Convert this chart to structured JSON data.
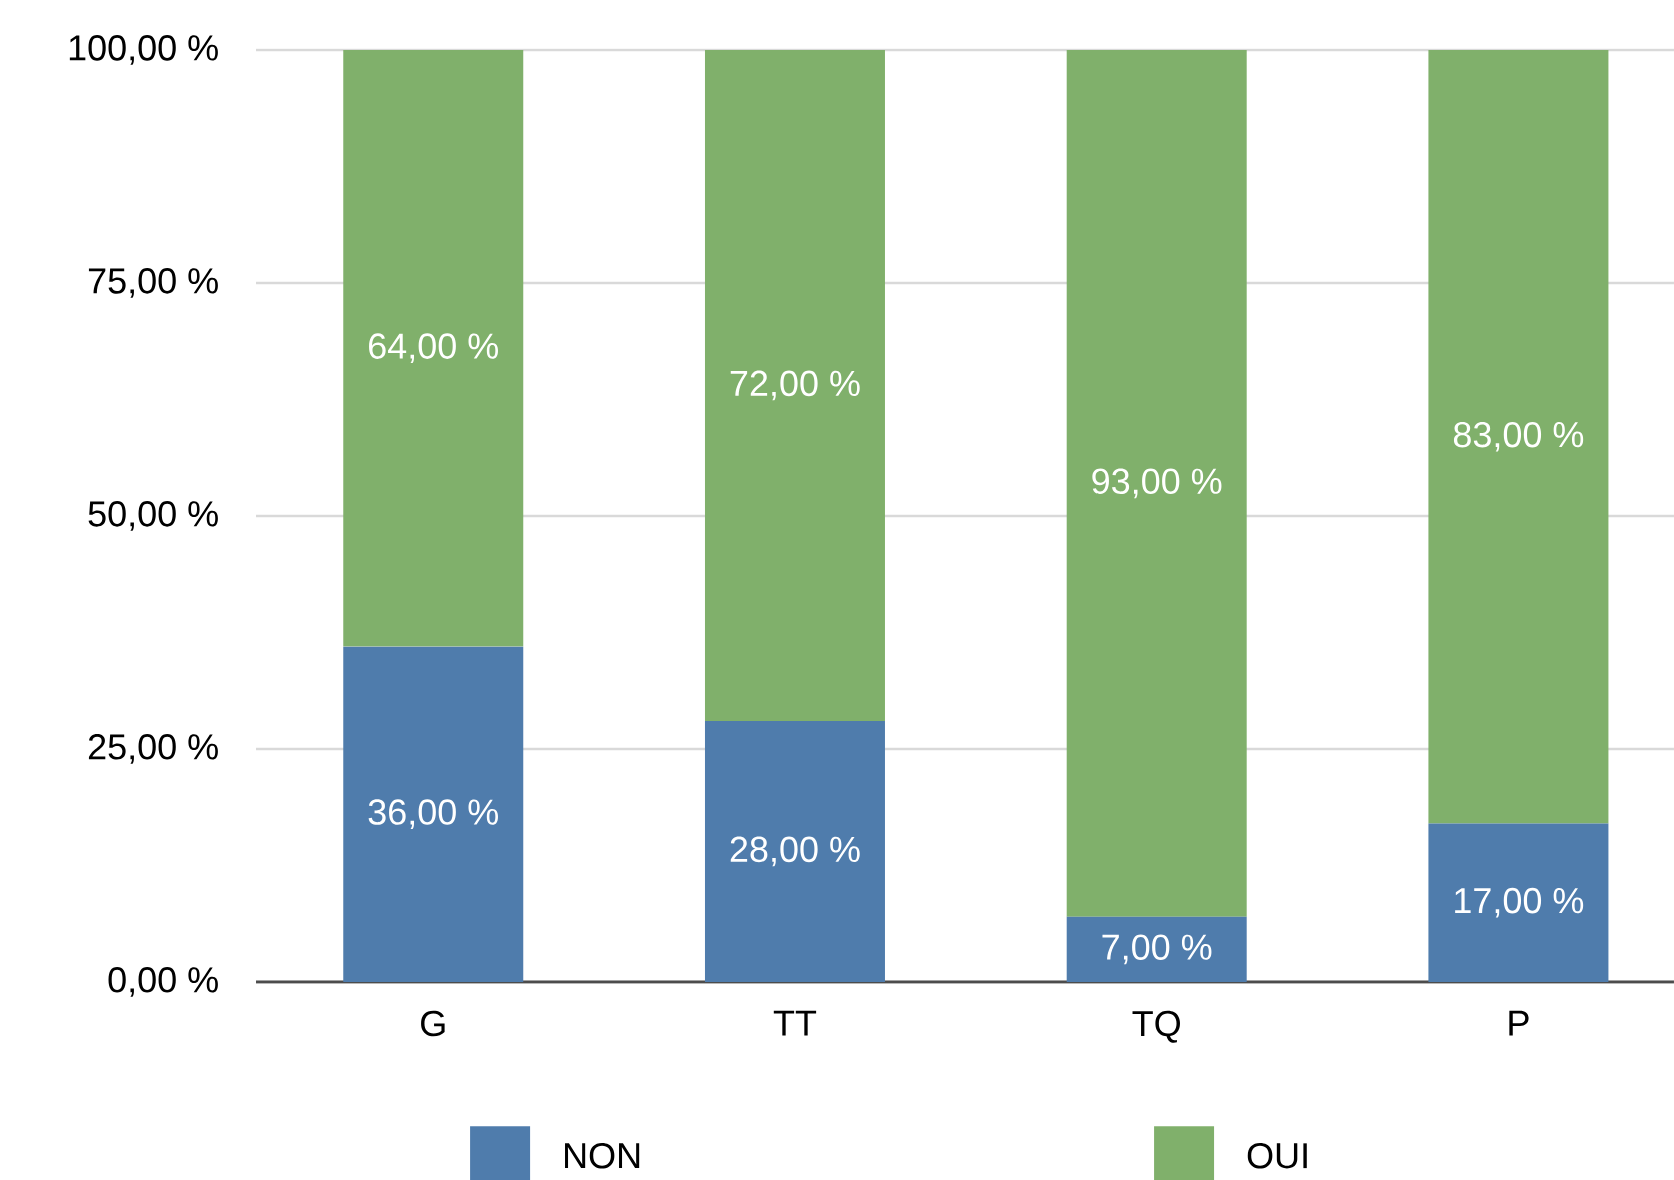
{
  "chart_data": {
    "type": "bar",
    "stacked": true,
    "categories": [
      "G",
      "TT",
      "TQ",
      "P"
    ],
    "series": [
      {
        "name": "NON",
        "color": "#4f7cac",
        "values": [
          36,
          28,
          7,
          17
        ],
        "value_labels": [
          "36,00 %",
          "28,00 %",
          "7,00 %",
          "17,00 %"
        ]
      },
      {
        "name": "OUI",
        "color": "#80b06b",
        "values": [
          64,
          72,
          93,
          83
        ],
        "value_labels": [
          "64,00 %",
          "72,00 %",
          "93,00 %",
          "83,00 %"
        ]
      }
    ],
    "ylim": [
      0,
      100
    ],
    "yticks": [
      {
        "value": 0,
        "label": "0,00 %"
      },
      {
        "value": 25,
        "label": "25,00 %"
      },
      {
        "value": 50,
        "label": "50,00 %"
      },
      {
        "value": 75,
        "label": "75,00 %"
      },
      {
        "value": 100,
        "label": "100,00 %"
      }
    ],
    "grid": "y",
    "legend": "bottom"
  }
}
